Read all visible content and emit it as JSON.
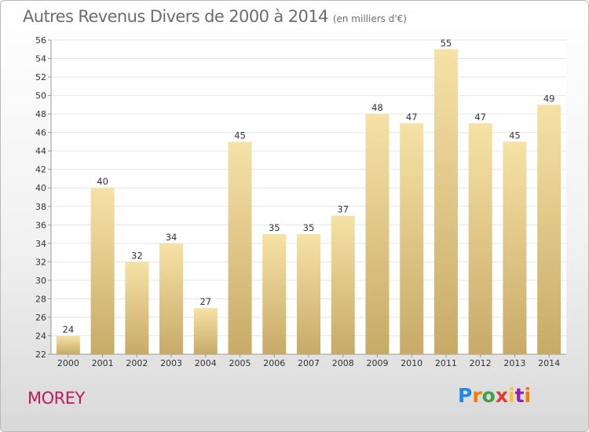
{
  "title": "Autres Revenus Divers de 2000 à 2014",
  "subtitle": "(en milliers d'€)",
  "commune": "MOREY",
  "logo": {
    "letters": [
      "P",
      "r",
      "o",
      "x",
      "i",
      "t",
      "i"
    ],
    "colors": [
      "#1e88e5",
      "#f57c00",
      "#43a047",
      "#e53935",
      "#fbc02d",
      "#8e24aa",
      "#f57c00"
    ]
  },
  "colors": {
    "bar_light": "#f6e2a6",
    "bar_dark": "#c8aa68",
    "grid": "#e6e6e6",
    "commune": "#c2185b"
  },
  "chart_data": {
    "type": "bar",
    "title": "Autres Revenus Divers de 2000 à 2014",
    "subtitle": "(en milliers d'€)",
    "categories": [
      "2000",
      "2001",
      "2002",
      "2003",
      "2004",
      "2005",
      "2006",
      "2007",
      "2008",
      "2009",
      "2010",
      "2011",
      "2012",
      "2013",
      "2014"
    ],
    "values": [
      24,
      40,
      32,
      34,
      27,
      45,
      35,
      35,
      37,
      48,
      47,
      55,
      47,
      45,
      49
    ],
    "ylim": [
      22,
      56
    ],
    "yticks": [
      22,
      24,
      26,
      28,
      30,
      32,
      34,
      36,
      38,
      40,
      42,
      44,
      46,
      48,
      50,
      52,
      54,
      56
    ],
    "grid": true,
    "data_labels": true
  }
}
